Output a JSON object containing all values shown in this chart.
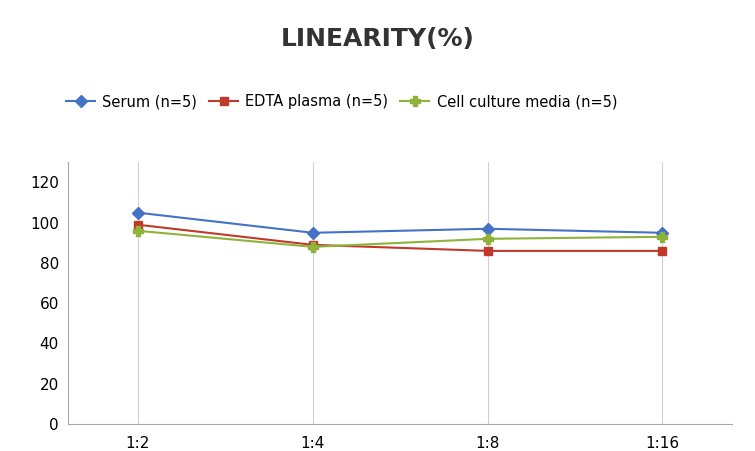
{
  "title": "LINEARITY(%)",
  "x_labels": [
    "1:2",
    "1:4",
    "1:8",
    "1:16"
  ],
  "x_positions": [
    0,
    1,
    2,
    3
  ],
  "series": [
    {
      "label": "Serum (n=5)",
      "values": [
        105,
        95,
        97,
        95
      ],
      "color": "#4472C4",
      "marker": "D",
      "markersize": 6
    },
    {
      "label": "EDTA plasma (n=5)",
      "values": [
        99,
        89,
        86,
        86
      ],
      "color": "#C0392B",
      "marker": "s",
      "markersize": 6
    },
    {
      "label": "Cell culture media (n=5)",
      "values": [
        96,
        88,
        92,
        93
      ],
      "color": "#8DB33A",
      "marker": "P",
      "markersize": 7
    }
  ],
  "ylim": [
    0,
    130
  ],
  "yticks": [
    0,
    20,
    40,
    60,
    80,
    100,
    120
  ],
  "grid_color": "#D0D0D0",
  "background_color": "#FFFFFF",
  "title_fontsize": 18,
  "legend_fontsize": 10.5,
  "tick_fontsize": 11
}
